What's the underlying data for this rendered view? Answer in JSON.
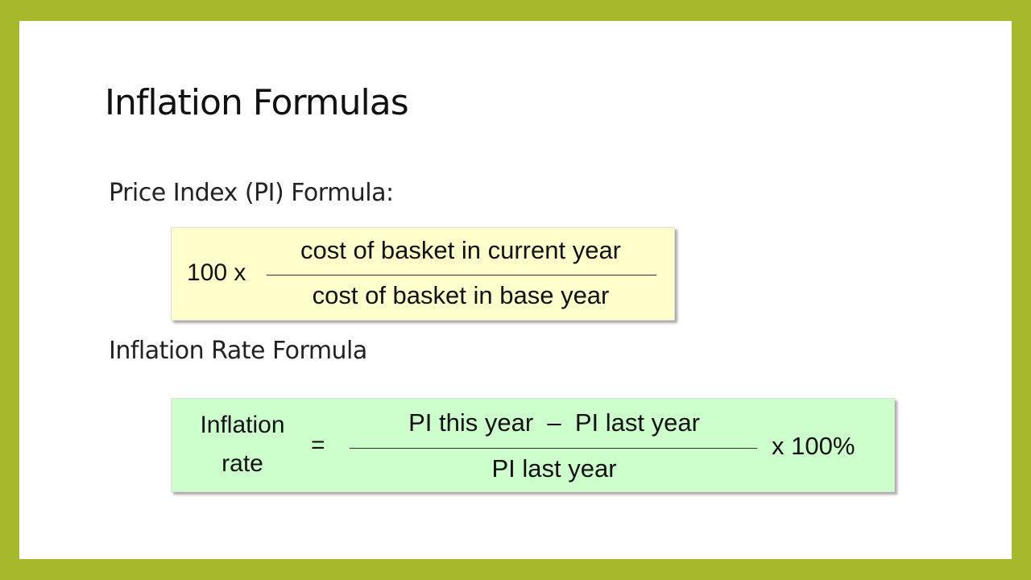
{
  "title": "Inflation Formulas",
  "pi_section": {
    "heading": "Price Index (PI) Formula:",
    "multiplier": "100 x",
    "numerator": "cost of basket in current year",
    "denominator": "cost of basket in base year",
    "box_color": "#ffffcc"
  },
  "ir_section": {
    "heading": "Inflation Rate Formula",
    "lhs_line1": "Inflation",
    "lhs_line2": "rate",
    "equals": "=",
    "numerator": "PI this year  –  PI last year",
    "denominator": "PI last year",
    "multiplier": "x 100%",
    "box_color": "#ccffcc"
  },
  "border_color": "#a5b92b"
}
